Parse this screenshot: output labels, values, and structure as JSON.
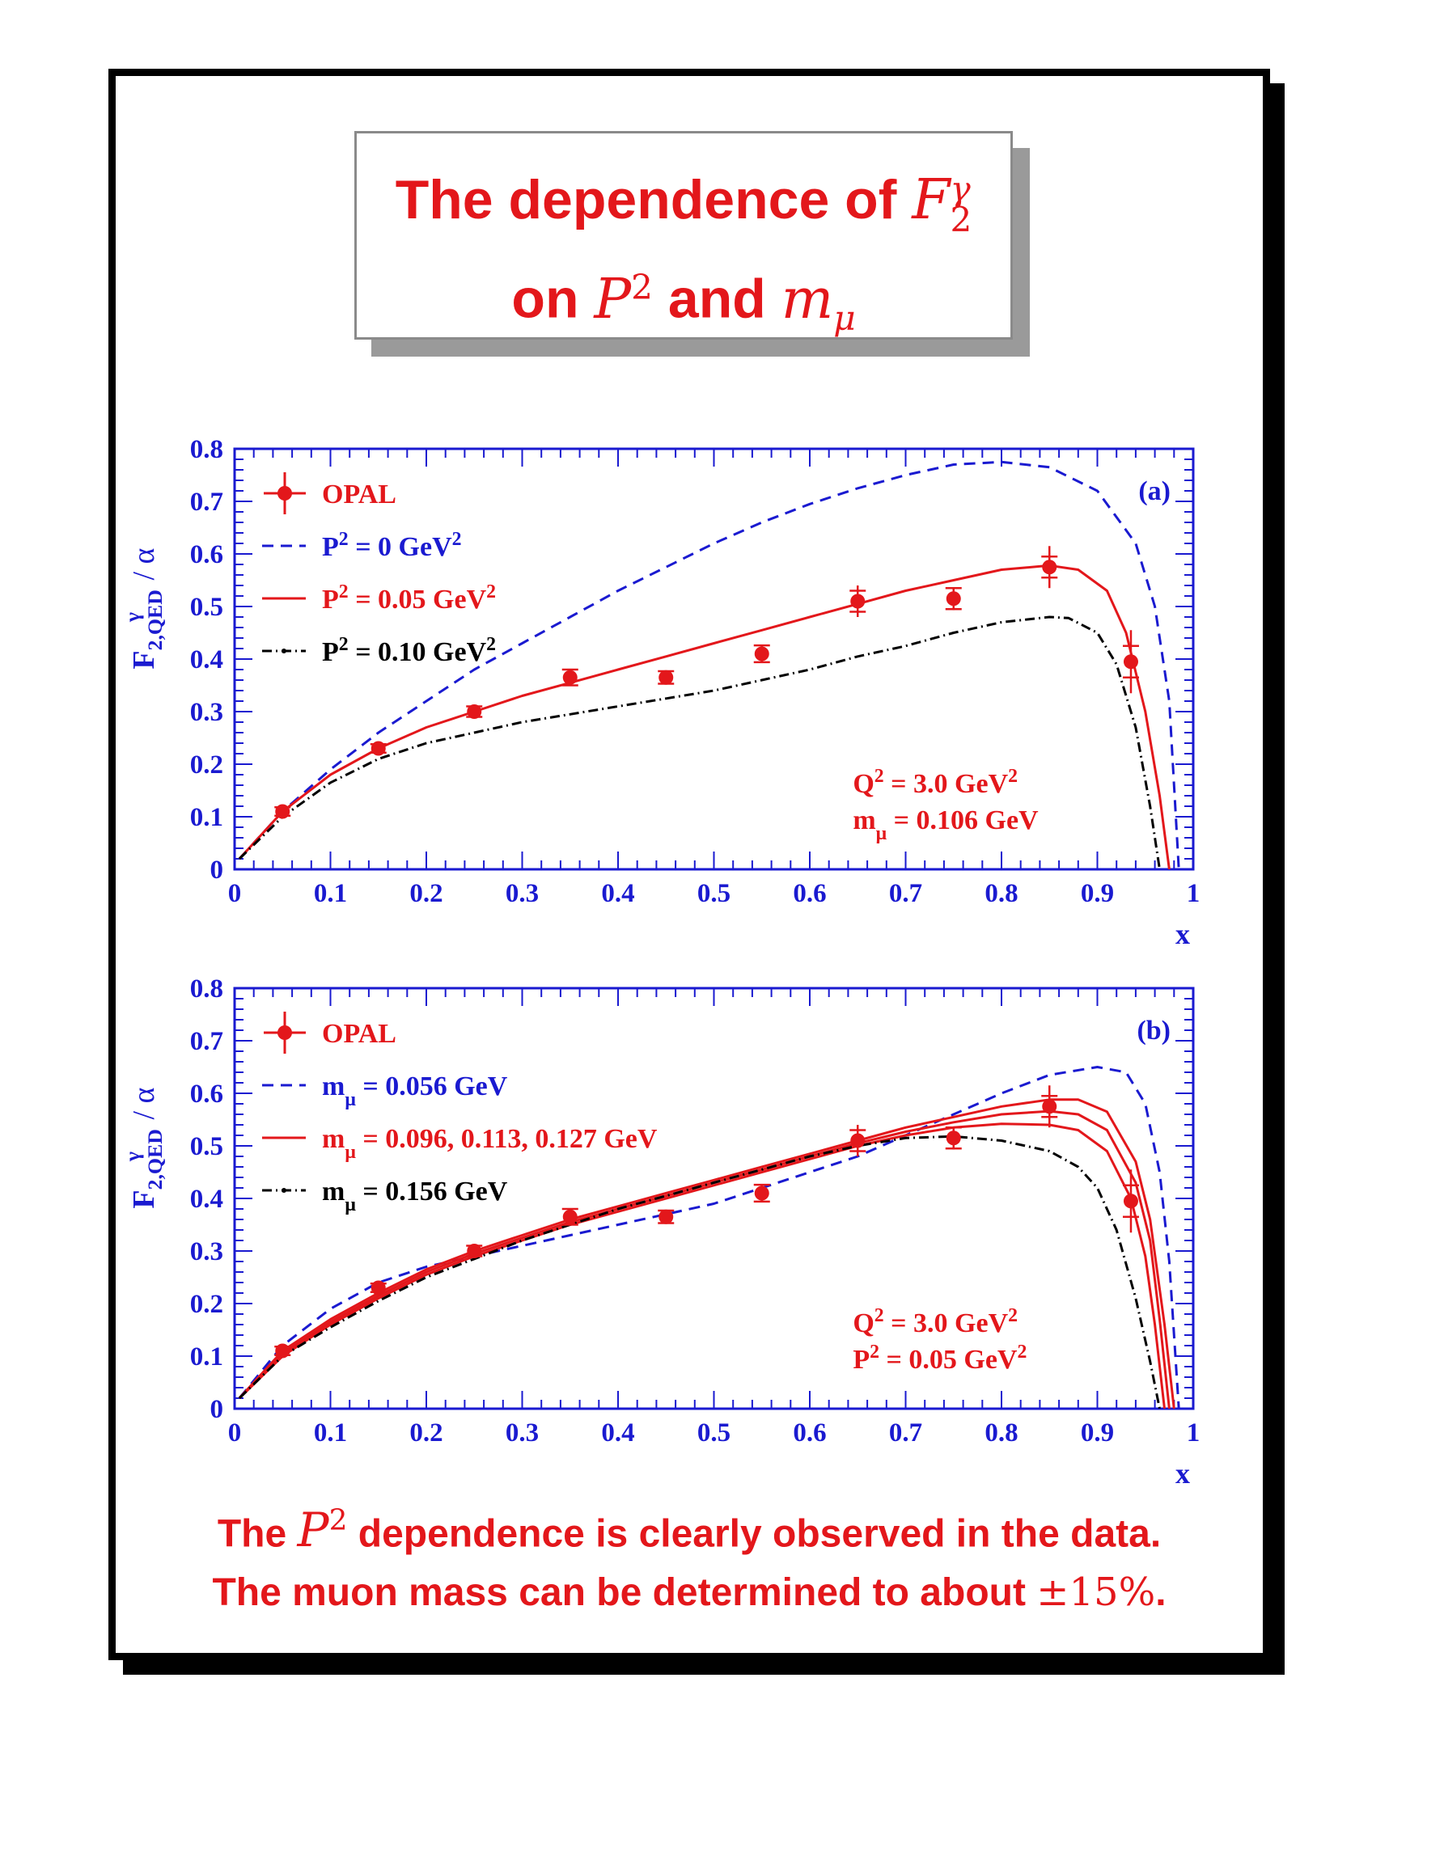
{
  "title": {
    "line1_text": "The dependence of",
    "line1_math": "F",
    "line1_math_sup": "γ",
    "line1_math_sub": "2",
    "line2_on": "on",
    "line2_math1": "P",
    "line2_math1_sup": "2",
    "line2_and": "and",
    "line2_math2": "m",
    "line2_math2_sub": "μ"
  },
  "conclusion": {
    "line1_prefix": "The",
    "line1_math": "P",
    "line1_math_sup": "2",
    "line1_suffix": "dependence is clearly observed in the data.",
    "line2_prefix": "The muon mass can be determined to about",
    "line2_math": "±15%",
    "line2_suffix": "."
  },
  "colors": {
    "axis": "#1a1ad0",
    "red": "#e3171b",
    "blue": "#1a1ad0",
    "black": "#000000"
  },
  "chart_data": [
    {
      "type": "line",
      "panel_label": "(a)",
      "xlabel": "x",
      "ylabel": "F 2,QED γ / α",
      "xlim": [
        0,
        1
      ],
      "ylim": [
        0,
        0.8
      ],
      "x_ticks": [
        "0",
        "0.1",
        "0.2",
        "0.3",
        "0.4",
        "0.5",
        "0.6",
        "0.7",
        "0.8",
        "0.9",
        "1"
      ],
      "y_ticks": [
        "0",
        "0.1",
        "0.2",
        "0.3",
        "0.4",
        "0.5",
        "0.6",
        "0.7",
        "0.8"
      ],
      "legend_position": "top-left",
      "legend": [
        {
          "label": "OPAL",
          "style": "marker",
          "color": "red"
        },
        {
          "label": "P² =    0 GeV²",
          "style": "dashed",
          "color": "blue"
        },
        {
          "label": "P² = 0.05 GeV²",
          "style": "solid",
          "color": "red"
        },
        {
          "label": "P² = 0.10 GeV²",
          "style": "dashdot",
          "color": "black"
        }
      ],
      "annotations": [
        "Q² = 3.0 GeV²",
        "mμ = 0.106 GeV"
      ],
      "data_points": {
        "name": "OPAL",
        "x": [
          0.05,
          0.15,
          0.25,
          0.35,
          0.45,
          0.55,
          0.65,
          0.75,
          0.85,
          0.935
        ],
        "y": [
          0.11,
          0.23,
          0.3,
          0.365,
          0.365,
          0.41,
          0.51,
          0.515,
          0.575,
          0.395
        ],
        "err_stat": [
          0.008,
          0.008,
          0.01,
          0.015,
          0.012,
          0.016,
          0.02,
          0.02,
          0.02,
          0.03
        ],
        "err_tot": [
          0.008,
          0.008,
          0.01,
          0.015,
          0.012,
          0.016,
          0.03,
          0.022,
          0.04,
          0.06
        ]
      },
      "series": [
        {
          "style": "dashed",
          "color": "blue",
          "x": [
            0.005,
            0.05,
            0.1,
            0.15,
            0.2,
            0.25,
            0.3,
            0.35,
            0.4,
            0.45,
            0.5,
            0.55,
            0.6,
            0.65,
            0.7,
            0.75,
            0.8,
            0.85,
            0.9,
            0.94,
            0.96,
            0.975,
            0.985
          ],
          "y": [
            0.02,
            0.11,
            0.19,
            0.26,
            0.32,
            0.38,
            0.43,
            0.48,
            0.53,
            0.575,
            0.62,
            0.66,
            0.695,
            0.725,
            0.75,
            0.77,
            0.775,
            0.765,
            0.72,
            0.62,
            0.5,
            0.32,
            0.0
          ]
        },
        {
          "style": "solid",
          "color": "red",
          "x": [
            0.005,
            0.05,
            0.1,
            0.15,
            0.2,
            0.25,
            0.3,
            0.35,
            0.4,
            0.45,
            0.5,
            0.55,
            0.6,
            0.65,
            0.7,
            0.75,
            0.8,
            0.85,
            0.88,
            0.91,
            0.93,
            0.95,
            0.965,
            0.975
          ],
          "y": [
            0.02,
            0.11,
            0.18,
            0.23,
            0.27,
            0.3,
            0.33,
            0.355,
            0.38,
            0.405,
            0.43,
            0.455,
            0.48,
            0.505,
            0.53,
            0.55,
            0.57,
            0.578,
            0.57,
            0.53,
            0.45,
            0.3,
            0.14,
            0.0
          ]
        },
        {
          "style": "dashdot",
          "color": "black",
          "x": [
            0.005,
            0.05,
            0.1,
            0.15,
            0.2,
            0.25,
            0.3,
            0.35,
            0.4,
            0.45,
            0.5,
            0.55,
            0.6,
            0.65,
            0.7,
            0.75,
            0.8,
            0.85,
            0.87,
            0.9,
            0.92,
            0.94,
            0.955,
            0.965
          ],
          "y": [
            0.02,
            0.1,
            0.165,
            0.21,
            0.24,
            0.26,
            0.28,
            0.295,
            0.31,
            0.325,
            0.34,
            0.36,
            0.38,
            0.405,
            0.425,
            0.45,
            0.47,
            0.48,
            0.478,
            0.45,
            0.39,
            0.27,
            0.12,
            0.0
          ]
        }
      ]
    },
    {
      "type": "line",
      "panel_label": "(b)",
      "xlabel": "x",
      "ylabel": "F 2,QED γ / α",
      "xlim": [
        0,
        1
      ],
      "ylim": [
        0,
        0.8
      ],
      "x_ticks": [
        "0",
        "0.1",
        "0.2",
        "0.3",
        "0.4",
        "0.5",
        "0.6",
        "0.7",
        "0.8",
        "0.9",
        "1"
      ],
      "y_ticks": [
        "0",
        "0.1",
        "0.2",
        "0.3",
        "0.4",
        "0.5",
        "0.6",
        "0.7",
        "0.8"
      ],
      "legend_position": "top-left",
      "legend": [
        {
          "label": "OPAL",
          "style": "marker",
          "color": "red"
        },
        {
          "label": "mμ = 0.056 GeV",
          "style": "dashed",
          "color": "blue"
        },
        {
          "label": "mμ = 0.096, 0.113, 0.127 GeV",
          "style": "solid",
          "color": "red"
        },
        {
          "label": "mμ = 0.156 GeV",
          "style": "dashdot",
          "color": "black"
        }
      ],
      "annotations": [
        "Q² = 3.0 GeV²",
        "P² = 0.05 GeV²"
      ],
      "data_points": {
        "name": "OPAL",
        "x": [
          0.05,
          0.15,
          0.25,
          0.35,
          0.45,
          0.55,
          0.65,
          0.75,
          0.85,
          0.935
        ],
        "y": [
          0.11,
          0.23,
          0.3,
          0.365,
          0.365,
          0.41,
          0.51,
          0.515,
          0.575,
          0.395
        ],
        "err_stat": [
          0.008,
          0.008,
          0.01,
          0.015,
          0.012,
          0.016,
          0.02,
          0.02,
          0.02,
          0.03
        ],
        "err_tot": [
          0.008,
          0.008,
          0.01,
          0.015,
          0.012,
          0.016,
          0.03,
          0.022,
          0.04,
          0.06
        ]
      },
      "series": [
        {
          "style": "dashed",
          "color": "blue",
          "x": [
            0.005,
            0.05,
            0.1,
            0.15,
            0.2,
            0.25,
            0.3,
            0.35,
            0.4,
            0.45,
            0.5,
            0.55,
            0.6,
            0.65,
            0.7,
            0.75,
            0.8,
            0.85,
            0.9,
            0.93,
            0.95,
            0.965,
            0.975,
            0.985
          ],
          "y": [
            0.02,
            0.12,
            0.19,
            0.24,
            0.27,
            0.29,
            0.31,
            0.33,
            0.35,
            0.37,
            0.39,
            0.42,
            0.45,
            0.48,
            0.52,
            0.56,
            0.6,
            0.635,
            0.65,
            0.64,
            0.58,
            0.45,
            0.28,
            0.0
          ]
        },
        {
          "style": "solid",
          "color": "red",
          "x": [
            0.005,
            0.05,
            0.1,
            0.15,
            0.2,
            0.25,
            0.3,
            0.35,
            0.4,
            0.45,
            0.5,
            0.55,
            0.6,
            0.65,
            0.7,
            0.75,
            0.8,
            0.85,
            0.88,
            0.91,
            0.94,
            0.955,
            0.97,
            0.98
          ],
          "y": [
            0.02,
            0.11,
            0.17,
            0.22,
            0.265,
            0.3,
            0.33,
            0.36,
            0.385,
            0.41,
            0.435,
            0.46,
            0.485,
            0.51,
            0.535,
            0.555,
            0.575,
            0.588,
            0.588,
            0.565,
            0.47,
            0.36,
            0.16,
            0.0
          ]
        },
        {
          "style": "solid",
          "color": "red",
          "x": [
            0.005,
            0.05,
            0.1,
            0.15,
            0.2,
            0.25,
            0.3,
            0.35,
            0.4,
            0.45,
            0.5,
            0.55,
            0.6,
            0.65,
            0.7,
            0.75,
            0.8,
            0.85,
            0.88,
            0.91,
            0.94,
            0.955,
            0.965,
            0.975
          ],
          "y": [
            0.02,
            0.105,
            0.165,
            0.215,
            0.26,
            0.295,
            0.325,
            0.355,
            0.38,
            0.405,
            0.43,
            0.455,
            0.48,
            0.505,
            0.527,
            0.545,
            0.56,
            0.566,
            0.56,
            0.53,
            0.43,
            0.32,
            0.17,
            0.0
          ]
        },
        {
          "style": "solid",
          "color": "red",
          "x": [
            0.005,
            0.05,
            0.1,
            0.15,
            0.2,
            0.25,
            0.3,
            0.35,
            0.4,
            0.45,
            0.5,
            0.55,
            0.6,
            0.65,
            0.7,
            0.75,
            0.8,
            0.85,
            0.88,
            0.91,
            0.935,
            0.95,
            0.96,
            0.97
          ],
          "y": [
            0.02,
            0.1,
            0.16,
            0.21,
            0.255,
            0.29,
            0.32,
            0.35,
            0.375,
            0.4,
            0.425,
            0.45,
            0.475,
            0.5,
            0.52,
            0.535,
            0.542,
            0.54,
            0.53,
            0.49,
            0.4,
            0.29,
            0.16,
            0.0
          ]
        },
        {
          "style": "dashdot",
          "color": "black",
          "x": [
            0.005,
            0.05,
            0.1,
            0.15,
            0.2,
            0.25,
            0.3,
            0.35,
            0.4,
            0.45,
            0.5,
            0.55,
            0.6,
            0.65,
            0.7,
            0.75,
            0.8,
            0.85,
            0.88,
            0.9,
            0.92,
            0.94,
            0.955,
            0.965
          ],
          "y": [
            0.02,
            0.1,
            0.155,
            0.205,
            0.25,
            0.285,
            0.32,
            0.35,
            0.38,
            0.405,
            0.43,
            0.455,
            0.48,
            0.5,
            0.515,
            0.518,
            0.51,
            0.49,
            0.46,
            0.42,
            0.34,
            0.21,
            0.09,
            0.0
          ]
        }
      ]
    }
  ]
}
